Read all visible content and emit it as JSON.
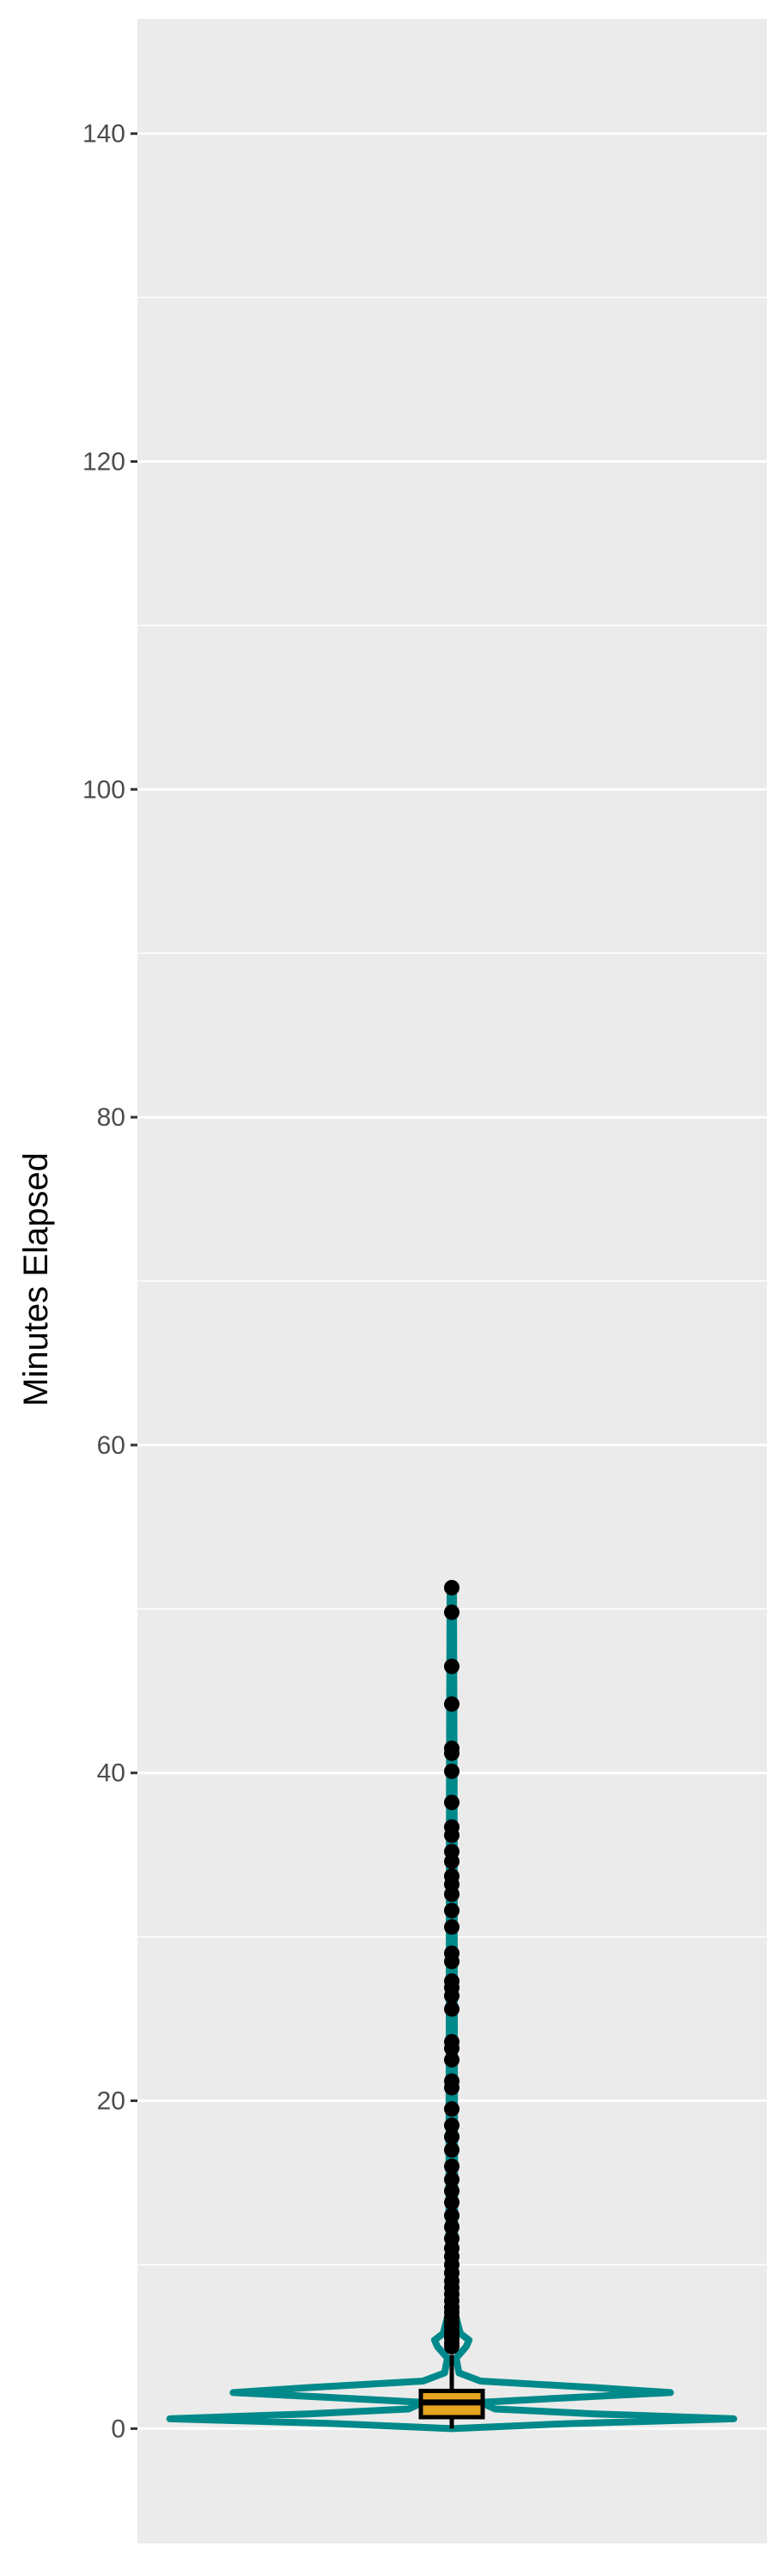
{
  "chart_data": {
    "type": "violin",
    "title": "",
    "xlabel": "",
    "ylabel": "Minutes Elapsed",
    "ylim": [
      -7,
      147
    ],
    "y_ticks": [
      0,
      20,
      40,
      60,
      80,
      100,
      120,
      140
    ],
    "grid": true,
    "colors": {
      "panel": "#ebebeb",
      "grid": "#ffffff",
      "violin": "#00898a",
      "box_fill": "#e6a421",
      "outlier": "#000000"
    },
    "violin_density": [
      {
        "y": 0.0,
        "w": 0.0
      },
      {
        "y": 0.3,
        "w": 0.4
      },
      {
        "y": 0.6,
        "w": 0.98
      },
      {
        "y": 0.9,
        "w": 0.5
      },
      {
        "y": 1.2,
        "w": 0.15
      },
      {
        "y": 1.6,
        "w": 0.1
      },
      {
        "y": 1.9,
        "w": 0.42
      },
      {
        "y": 2.2,
        "w": 0.76
      },
      {
        "y": 2.5,
        "w": 0.5
      },
      {
        "y": 2.9,
        "w": 0.1
      },
      {
        "y": 3.4,
        "w": 0.025
      },
      {
        "y": 4.3,
        "w": 0.015
      },
      {
        "y": 5.0,
        "w": 0.05
      },
      {
        "y": 5.4,
        "w": 0.06
      },
      {
        "y": 5.8,
        "w": 0.03
      },
      {
        "y": 7.0,
        "w": 0.012
      },
      {
        "y": 12.0,
        "w": 0.01
      },
      {
        "y": 25.0,
        "w": 0.009
      },
      {
        "y": 40.0,
        "w": 0.008
      },
      {
        "y": 51.3,
        "w": 0.006
      }
    ],
    "box": {
      "lower_whisker": 0.0,
      "q1": 0.7,
      "median": 1.6,
      "q3": 2.3,
      "upper_whisker": 4.5
    },
    "outliers": [
      5.0,
      5.2,
      5.5,
      5.7,
      5.9,
      6.2,
      6.5,
      6.8,
      7.1,
      7.4,
      7.8,
      8.2,
      8.6,
      9.0,
      9.5,
      10.0,
      10.5,
      11.0,
      11.6,
      12.3,
      13.0,
      13.8,
      14.5,
      15.2,
      16.0,
      17.0,
      17.8,
      18.5,
      19.5,
      20.8,
      21.2,
      22.5,
      23.2,
      23.6,
      25.6,
      26.4,
      26.9,
      27.3,
      28.5,
      29.0,
      30.6,
      31.6,
      32.6,
      33.2,
      33.7,
      34.6,
      35.2,
      36.2,
      36.7,
      38.2,
      40.1,
      41.2,
      41.5,
      44.2,
      46.5,
      49.8,
      51.3
    ]
  }
}
